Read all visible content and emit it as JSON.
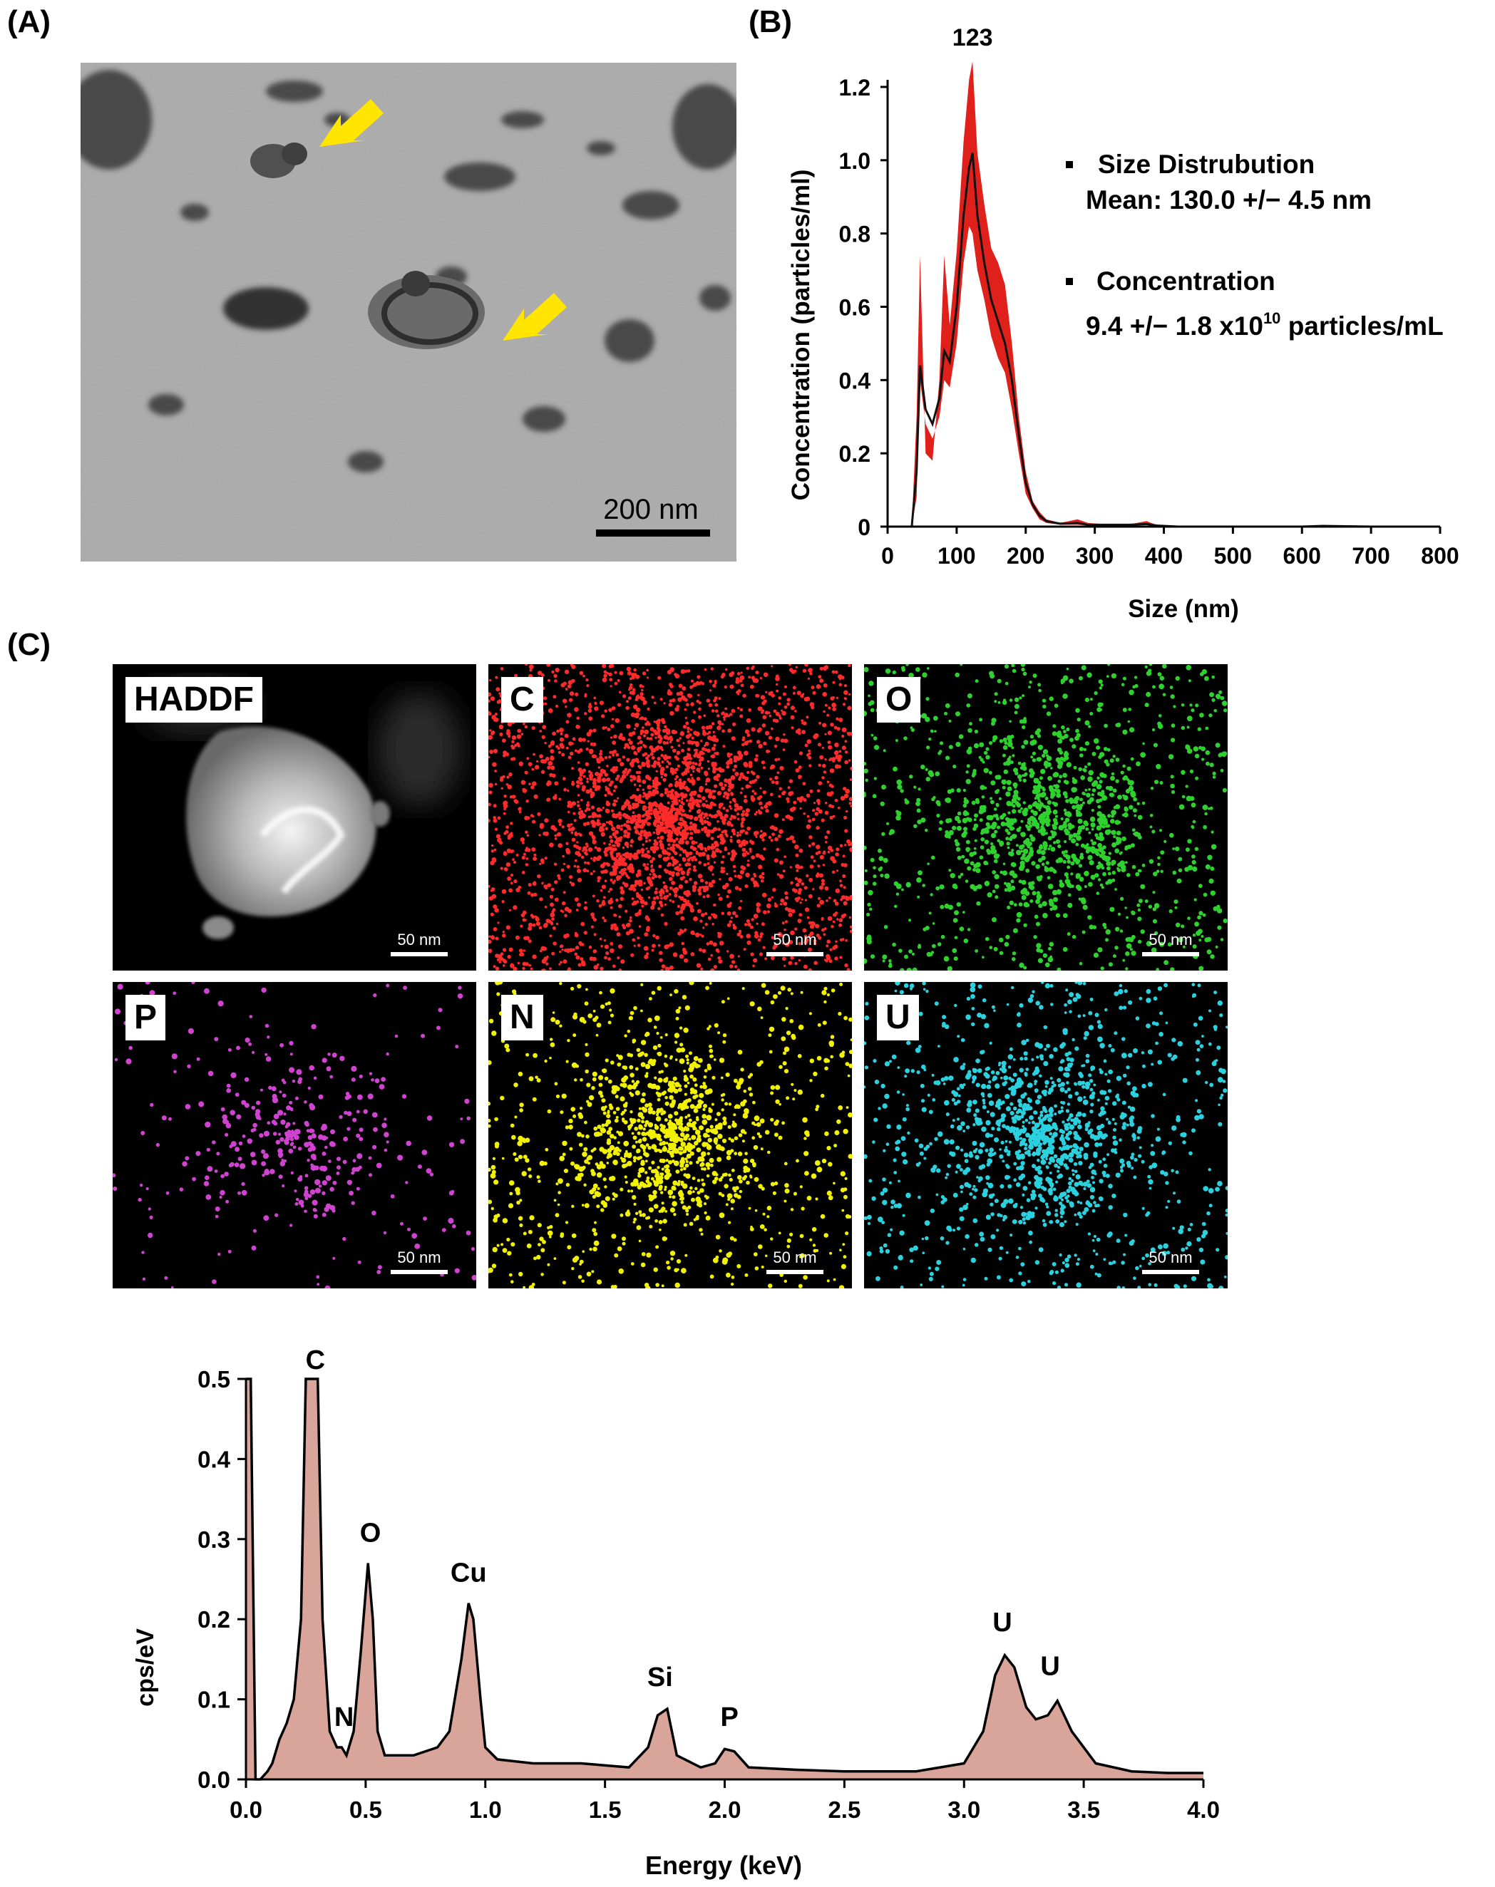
{
  "panels": {
    "a": "(A)",
    "b": "(B)",
    "c": "(C)"
  },
  "tem": {
    "scalebar": "200 nm"
  },
  "colors": {
    "arrow": "#ffe500",
    "red_band": "#e0201b",
    "spectrum_fill": "#d9a49a",
    "C": "#ff2a2a",
    "O": "#2ed12e",
    "P": "#d042d0",
    "N": "#f2f200",
    "U": "#2ad2e0"
  },
  "nta": {
    "peak_label": "123",
    "ylabel": "Concentration (particles/ml)",
    "xlabel": "Size (nm)",
    "xticks": [
      "0",
      "100",
      "200",
      "300",
      "400",
      "500",
      "600",
      "700",
      "800"
    ],
    "yticks": [
      "0",
      "0.2",
      "0.4",
      "0.6",
      "0.8",
      "1.0",
      "1.2"
    ],
    "legend": {
      "bullet1": "Size Distrubution",
      "line1": "Mean: 130.0 +/− 4.5 nm",
      "bullet2": "Concentration",
      "line2_pre": "9.4 +/− 1.8 x10",
      "line2_sup": "10",
      "line2_post": " particles/mL"
    }
  },
  "maps": [
    {
      "label": "HADDF",
      "scale": "50 nm"
    },
    {
      "label": "C",
      "scale": "50 nm"
    },
    {
      "label": "O",
      "scale": "50 nm"
    },
    {
      "label": "P",
      "scale": "50 nm"
    },
    {
      "label": "N",
      "scale": "50 nm"
    },
    {
      "label": "U",
      "scale": "50 nm"
    }
  ],
  "eds": {
    "ylabel": "cps/eV",
    "xlabel": "Energy (keV)",
    "xticks": [
      "0.0",
      "0.5",
      "1.0",
      "1.5",
      "2.0",
      "2.5",
      "3.0",
      "3.5",
      "4.0"
    ],
    "yticks": [
      "0.0",
      "0.1",
      "0.2",
      "0.3",
      "0.4",
      "0.5"
    ],
    "peaks": [
      "C",
      "O",
      "N",
      "Cu",
      "Si",
      "P",
      "U",
      "U"
    ]
  },
  "chart_data": [
    {
      "type": "line",
      "xlabel": "Size (nm)",
      "ylabel": "Concentration (particles/ml)",
      "xlim": [
        0,
        800
      ],
      "ylim": [
        0,
        1.2
      ],
      "annotation": "123",
      "x": [
        0,
        35,
        42,
        47,
        55,
        65,
        75,
        82,
        90,
        100,
        110,
        118,
        123,
        130,
        140,
        150,
        160,
        170,
        180,
        190,
        200,
        210,
        220,
        230,
        250,
        275,
        290,
        320,
        350,
        375,
        390,
        420,
        500,
        600,
        630,
        700,
        800
      ],
      "series": [
        {
          "values": [
            0,
            0,
            0.15,
            0.44,
            0.32,
            0.28,
            0.35,
            0.48,
            0.45,
            0.6,
            0.85,
            0.98,
            1.02,
            0.85,
            0.72,
            0.62,
            0.56,
            0.5,
            0.4,
            0.25,
            0.12,
            0.06,
            0.03,
            0.015,
            0.008,
            0.01,
            0.005,
            0.005,
            0.005,
            0.007,
            0.003,
            0,
            0,
            0,
            0.002,
            0,
            0
          ]
        },
        {
          "values": [
            0,
            0,
            0.3,
            0.74,
            0.2,
            0.18,
            0.4,
            0.74,
            0.55,
            0.75,
            1.05,
            1.22,
            1.27,
            1.02,
            0.88,
            0.76,
            0.72,
            0.66,
            0.5,
            0.3,
            0.15,
            0.07,
            0.04,
            0.02,
            0.01,
            0.02,
            0.01,
            0.006,
            0.006,
            0.015,
            0.004,
            0,
            0,
            0,
            0.003,
            0,
            0
          ]
        },
        {
          "values": [
            0,
            0,
            0.08,
            0.4,
            0.28,
            0.24,
            0.3,
            0.4,
            0.38,
            0.5,
            0.72,
            0.82,
            0.8,
            0.7,
            0.62,
            0.52,
            0.46,
            0.42,
            0.32,
            0.2,
            0.09,
            0.05,
            0.02,
            0.01,
            0.005,
            0.005,
            0.003,
            0.003,
            0.003,
            0.004,
            0.002,
            0,
            0,
            0,
            0.001,
            0,
            0
          ]
        }
      ]
    },
    {
      "type": "area",
      "xlabel": "Energy (keV)",
      "ylabel": "cps/eV",
      "xlim": [
        0,
        4.0
      ],
      "ylim": [
        0,
        0.5
      ],
      "x": [
        0,
        0.02,
        0.04,
        0.06,
        0.09,
        0.11,
        0.14,
        0.17,
        0.2,
        0.23,
        0.25,
        0.3,
        0.32,
        0.35,
        0.38,
        0.4,
        0.42,
        0.45,
        0.48,
        0.51,
        0.53,
        0.55,
        0.58,
        0.6,
        0.7,
        0.8,
        0.85,
        0.9,
        0.93,
        0.95,
        0.98,
        1.0,
        1.05,
        1.2,
        1.4,
        1.6,
        1.68,
        1.72,
        1.76,
        1.8,
        1.9,
        1.96,
        2.0,
        2.04,
        2.1,
        2.3,
        2.5,
        2.8,
        3.0,
        3.08,
        3.13,
        3.17,
        3.21,
        3.26,
        3.3,
        3.35,
        3.39,
        3.45,
        3.55,
        3.7,
        3.85,
        4.0
      ],
      "series": [
        {
          "values": [
            0.5,
            0.5,
            0,
            0,
            0.01,
            0.02,
            0.05,
            0.07,
            0.1,
            0.2,
            0.5,
            0.5,
            0.2,
            0.06,
            0.04,
            0.04,
            0.03,
            0.06,
            0.16,
            0.27,
            0.2,
            0.06,
            0.03,
            0.03,
            0.03,
            0.04,
            0.06,
            0.15,
            0.22,
            0.2,
            0.1,
            0.04,
            0.025,
            0.02,
            0.02,
            0.015,
            0.04,
            0.08,
            0.088,
            0.03,
            0.015,
            0.02,
            0.038,
            0.035,
            0.015,
            0.012,
            0.01,
            0.01,
            0.02,
            0.06,
            0.13,
            0.155,
            0.14,
            0.09,
            0.075,
            0.08,
            0.098,
            0.06,
            0.02,
            0.01,
            0.008,
            0.008
          ]
        }
      ],
      "annotations": [
        "C",
        "N",
        "O",
        "Cu",
        "Si",
        "P",
        "U",
        "U"
      ]
    }
  ]
}
